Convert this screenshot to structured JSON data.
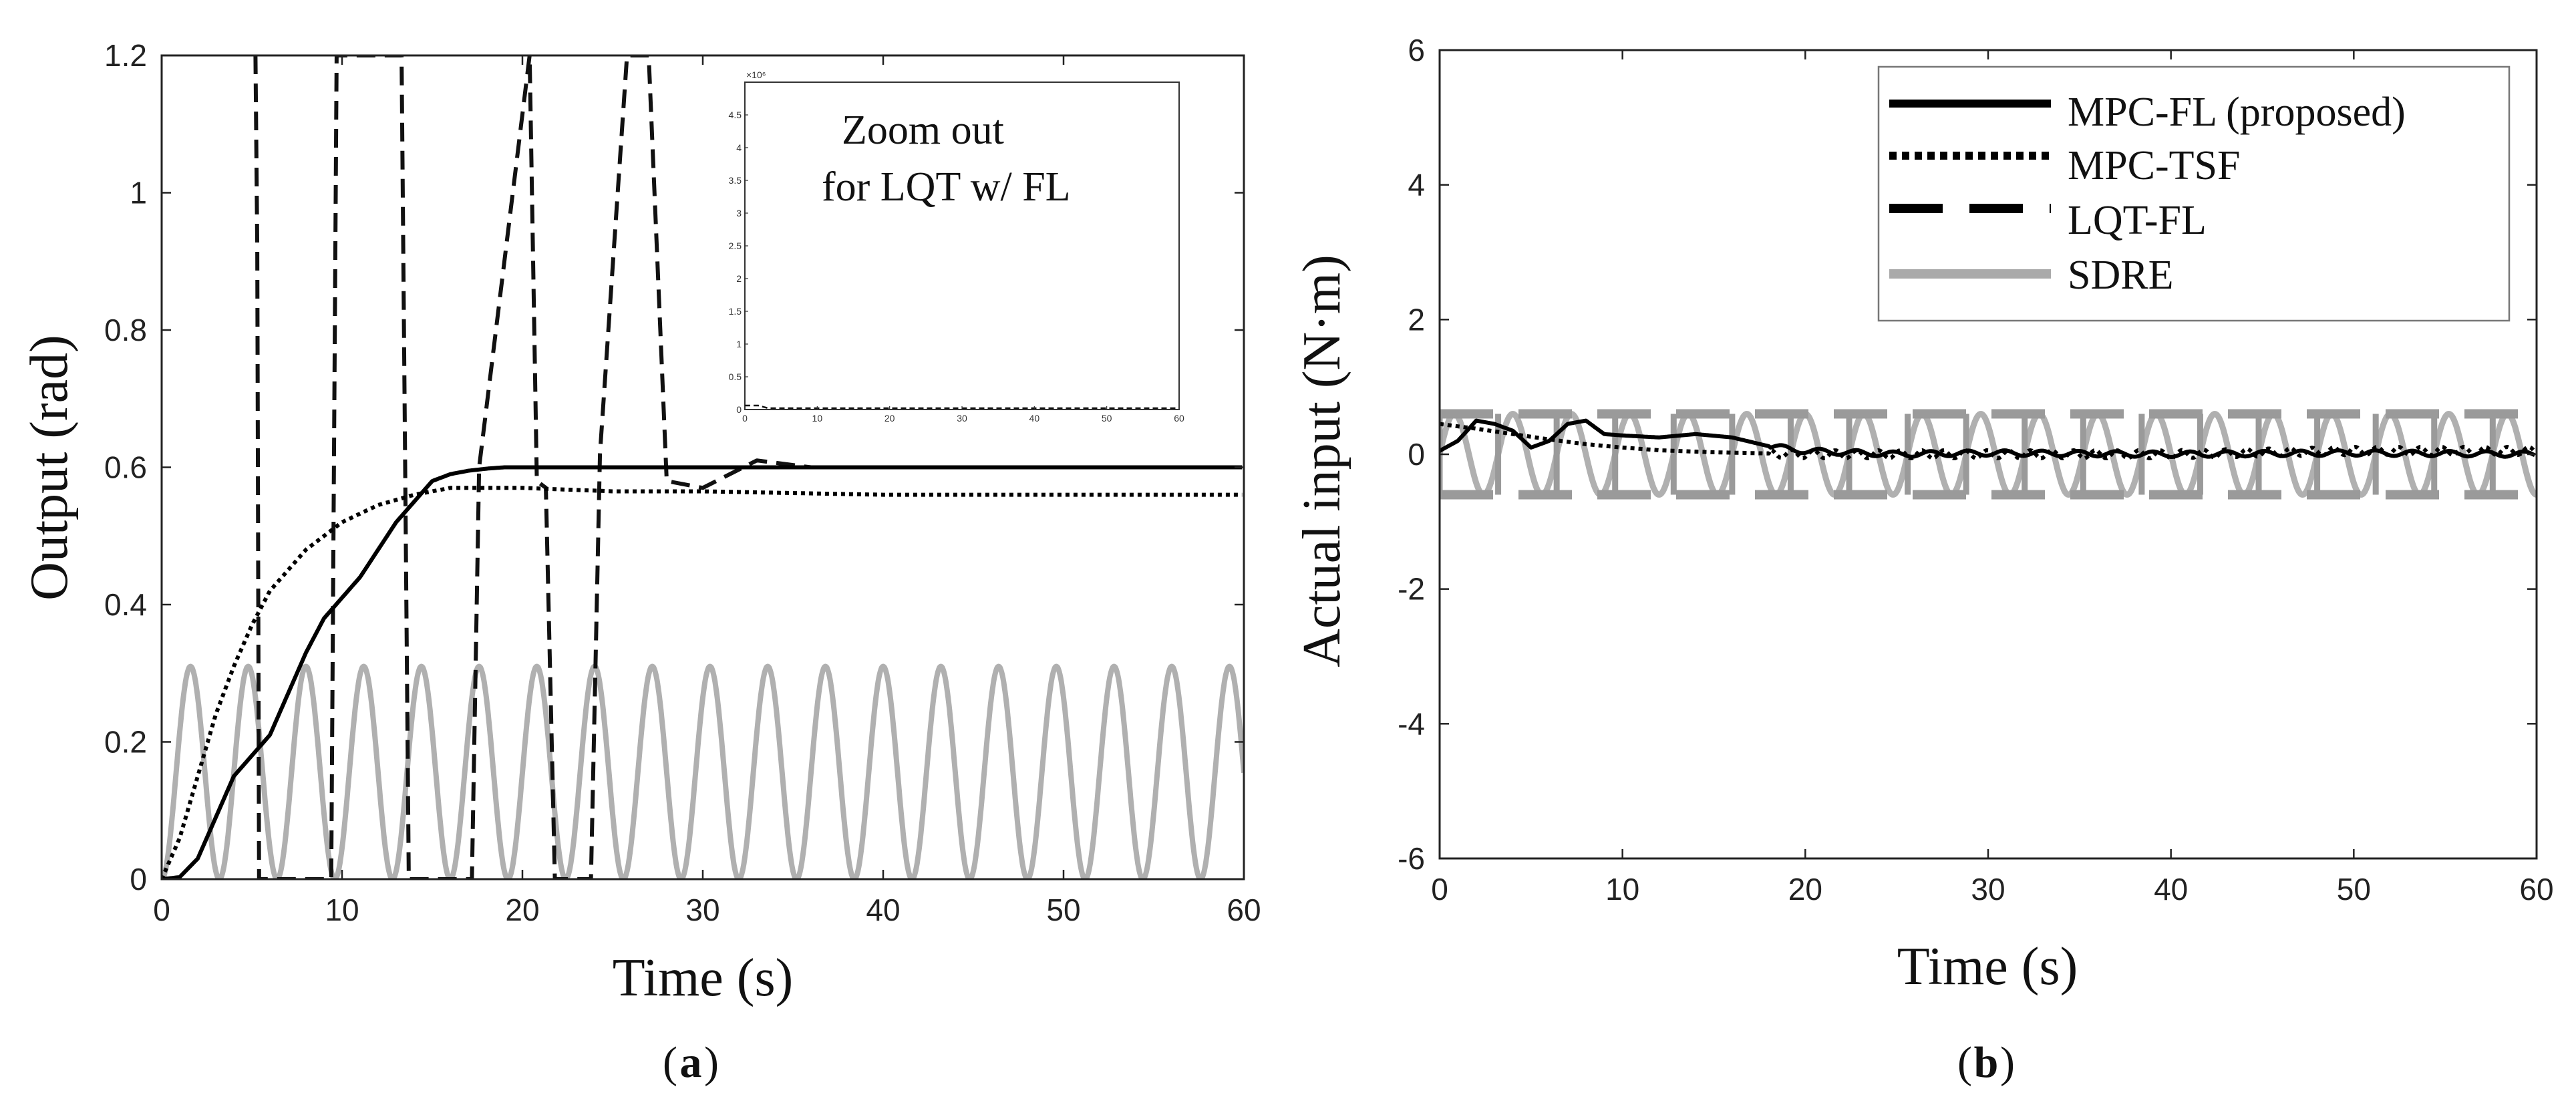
{
  "chart_data": [
    {
      "type": "line",
      "panel": "a",
      "caption_letter": "a",
      "xlabel": "Time (s)",
      "ylabel": "Output (rad)",
      "xlim": [
        0,
        60
      ],
      "ylim": [
        0,
        1.2
      ],
      "xticks": [
        "0",
        "10",
        "20",
        "30",
        "40",
        "50",
        "60"
      ],
      "yticks": [
        "0",
        "0.2",
        "0.4",
        "0.6",
        "0.8",
        "1",
        "1.2"
      ],
      "series": [
        {
          "name": "MPC-FL (proposed)",
          "style": "solid-black",
          "x": [
            0,
            1,
            2,
            3,
            4,
            5,
            6,
            7,
            8,
            9,
            10,
            11,
            12,
            13,
            14,
            15,
            16,
            17,
            18,
            19,
            20,
            25,
            30,
            40,
            50,
            60
          ],
          "y": [
            0,
            0.003,
            0.03,
            0.09,
            0.15,
            0.18,
            0.21,
            0.27,
            0.33,
            0.38,
            0.41,
            0.44,
            0.48,
            0.52,
            0.55,
            0.58,
            0.59,
            0.595,
            0.598,
            0.6,
            0.6,
            0.6,
            0.6,
            0.6,
            0.6,
            0.6
          ]
        },
        {
          "name": "MPC-TSF",
          "style": "dotted-black",
          "x": [
            0,
            1,
            2,
            3,
            4,
            5,
            6,
            8,
            10,
            12,
            14,
            16,
            18,
            20,
            25,
            30,
            40,
            50,
            60
          ],
          "y": [
            0,
            0.06,
            0.15,
            0.24,
            0.31,
            0.37,
            0.42,
            0.48,
            0.52,
            0.545,
            0.56,
            0.57,
            0.57,
            0.57,
            0.565,
            0.565,
            0.56,
            0.56,
            0.56
          ]
        },
        {
          "name": "LQT-FL",
          "style": "dashed-black",
          "x": [
            5.2,
            5.3,
            5.4,
            9.4,
            9.7,
            13.3,
            13.7,
            17.2,
            17.6,
            20.4,
            20.8,
            21.3,
            21.8,
            23.8,
            24.3,
            25.8,
            27.0,
            28.0,
            30.0,
            33.0,
            36.0,
            40.0
          ],
          "y": [
            1.2,
            0.92,
            0.0,
            0.0,
            1.2,
            1.2,
            0.0,
            0.0,
            0.6,
            1.2,
            0.58,
            0.57,
            0.0,
            0.0,
            0.62,
            1.2,
            1.2,
            0.58,
            0.57,
            0.61,
            0.6,
            0.6
          ]
        },
        {
          "name": "SDRE",
          "style": "solid-gray",
          "amplitude": 0.31,
          "period_s": 3.2,
          "x": [
            0,
            1.6,
            3.2,
            4.8,
            6.4,
            8.0
          ],
          "y": [
            0,
            0.31,
            0,
            0.31,
            0,
            0.31
          ]
        }
      ],
      "inset": {
        "text_line1": "Zoom out",
        "text_line2": "for LQT w/ FL",
        "exponent": "×10⁶",
        "xlim": [
          0,
          60
        ],
        "ylim": [
          0,
          5
        ],
        "xticks": [
          "0",
          "10",
          "20",
          "30",
          "40",
          "50",
          "60"
        ],
        "yticks": [
          "0",
          "0.5",
          "1",
          "1.5",
          "2",
          "2.5",
          "3",
          "3.5",
          "4",
          "4.5"
        ]
      }
    },
    {
      "type": "line",
      "panel": "b",
      "caption_letter": "b",
      "xlabel": "Time (s)",
      "ylabel": "Actual input (N·m)",
      "xlim": [
        0,
        60
      ],
      "ylim": [
        -6,
        6
      ],
      "xticks": [
        "0",
        "10",
        "20",
        "30",
        "40",
        "50",
        "60"
      ],
      "yticks": [
        "6",
        "4",
        "2",
        "0",
        "-2",
        "-4",
        "-6"
      ],
      "legend": {
        "placement": "top-right",
        "entries": [
          "MPC-FL (proposed)",
          "MPC-TSF",
          "LQT-FL",
          "SDRE"
        ]
      },
      "series": [
        {
          "name": "MPC-FL (proposed)",
          "style": "solid-black",
          "x": [
            0,
            1,
            2,
            3,
            4,
            5,
            6,
            7,
            8,
            9,
            10,
            12,
            14,
            16,
            18,
            20,
            25,
            30,
            40,
            50,
            60
          ],
          "y": [
            0.05,
            0.2,
            0.5,
            0.45,
            0.35,
            0.1,
            0.2,
            0.45,
            0.5,
            0.3,
            0.28,
            0.25,
            0.3,
            0.25,
            0.12,
            0.05,
            0.0,
            0.02,
            0.0,
            0.02,
            0.0
          ]
        },
        {
          "name": "MPC-TSF",
          "style": "dotted-black",
          "x": [
            0,
            2,
            4,
            6,
            8,
            10,
            12,
            15,
            20,
            30,
            40,
            50,
            60
          ],
          "y": [
            0.45,
            0.38,
            0.3,
            0.22,
            0.15,
            0.1,
            0.06,
            0.03,
            0.0,
            0.0,
            0.0,
            0.05,
            0.05
          ]
        },
        {
          "name": "LQT-FL",
          "style": "dashed-gray",
          "x": [
            0,
            60
          ],
          "y": [
            0.6,
            -0.6
          ]
        },
        {
          "name": "SDRE",
          "style": "solid-gray",
          "amplitude": 0.6,
          "period_s": 3.2,
          "x": [
            0,
            1.6,
            3.2
          ],
          "y": [
            0,
            0.6,
            0
          ]
        }
      ]
    }
  ]
}
